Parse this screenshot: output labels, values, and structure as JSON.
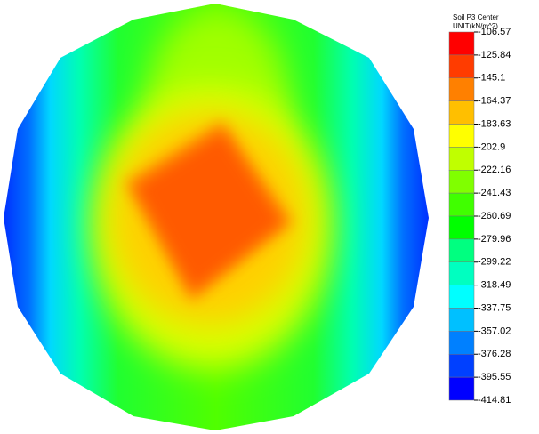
{
  "chart_data": {
    "type": "contour",
    "title": "Soil P3 Center",
    "subtitle": "UNIT(kN/m^2)",
    "ylim": [
      -414.81,
      -106.57
    ],
    "yticks": [
      -106.57,
      -125.84,
      -145.1,
      -164.37,
      -183.63,
      -202.9,
      -222.16,
      -241.43,
      -260.69,
      -279.96,
      -299.22,
      -318.49,
      -337.75,
      -357.02,
      -376.28,
      -395.55,
      -414.81
    ],
    "colors": [
      "#ff0000",
      "#ff3c00",
      "#ff8000",
      "#ffbf00",
      "#ffff00",
      "#c0ff00",
      "#80ff00",
      "#40ff00",
      "#00ff00",
      "#00ff80",
      "#00ffc0",
      "#00ffff",
      "#00c0ff",
      "#0080ff",
      "#0040ff",
      "#0000ff"
    ]
  }
}
